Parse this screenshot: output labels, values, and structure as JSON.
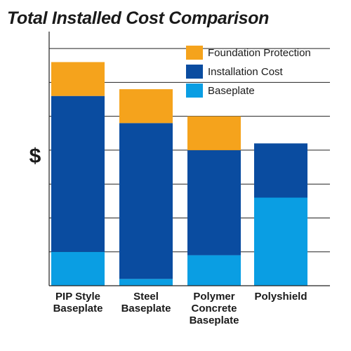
{
  "chart_data": {
    "type": "bar",
    "stacked": true,
    "title": "Total Installed Cost Comparison",
    "ylabel": "$",
    "xlabel": "",
    "categories": [
      [
        "PIP Style",
        "Baseplate"
      ],
      [
        "Steel",
        "Baseplate"
      ],
      [
        "Polymer",
        "Concrete",
        "Baseplate"
      ],
      [
        "Polyshield"
      ]
    ],
    "series": [
      {
        "name": "Baseplate",
        "color": "#0a9ee3",
        "values": [
          1.0,
          0.2,
          0.9,
          2.6
        ]
      },
      {
        "name": "Installation Cost",
        "color": "#0a4ca0",
        "values": [
          4.6,
          4.6,
          3.1,
          1.6
        ]
      },
      {
        "name": "Foundation Protection",
        "color": "#f5a31c",
        "values": [
          1.0,
          1.0,
          1.0,
          0
        ]
      }
    ],
    "ylim": [
      0,
      7.5
    ],
    "grid": true,
    "legend": "top-right",
    "legend_order": [
      "Foundation Protection",
      "Installation Cost",
      "Baseplate"
    ]
  }
}
